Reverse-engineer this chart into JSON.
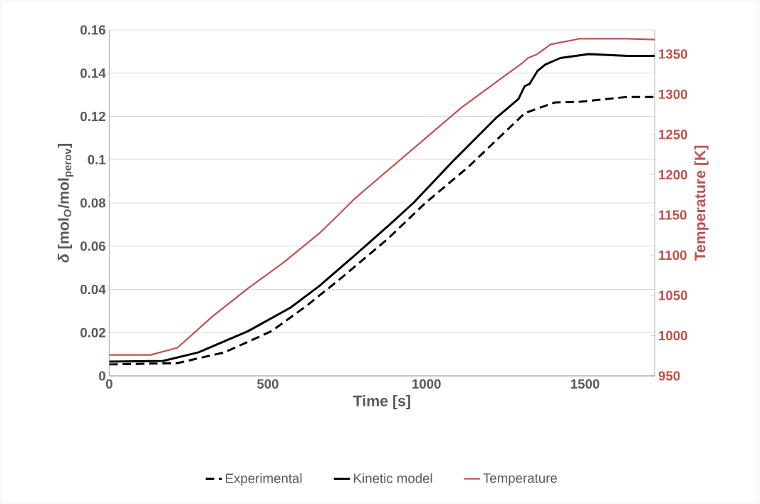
{
  "chart_data": {
    "type": "line",
    "xlabel": "Time [s]",
    "ylabel": "*δ* [mol$_{O}$/mol$_{perov}$]",
    "y2label": "Temperature [K]",
    "xlim": [
      0,
      1720
    ],
    "xticks": [
      0,
      500,
      1000,
      1500
    ],
    "ylim": [
      0,
      0.16
    ],
    "yticks": [
      0,
      0.02,
      0.04,
      0.06,
      0.08,
      0.1,
      0.12,
      0.14,
      0.16
    ],
    "y2lim": [
      950,
      1380
    ],
    "y2ticks": [
      950,
      1000,
      1050,
      1100,
      1150,
      1200,
      1250,
      1300,
      1350
    ],
    "grid": "y",
    "legend": "bottom",
    "marker": "none",
    "series": [
      {
        "name": "Experimental",
        "color": "#000000",
        "line_style": "dashed",
        "x": [
          0,
          215,
          364,
          512,
          624,
          736,
          879,
          997,
          1131,
          1310,
          1404,
          1480,
          1632,
          1720
        ],
        "values": [
          0.0053,
          0.0059,
          0.0109,
          0.0207,
          0.0326,
          0.0458,
          0.0635,
          0.08,
          0.0965,
          0.1215,
          0.1264,
          0.1267,
          0.129,
          0.129
        ]
      },
      {
        "name": "Kinetic model",
        "color": "#000000",
        "line_style": "solid",
        "x": [
          0,
          170,
          282,
          438,
          572,
          662,
          773,
          885,
          959,
          1087,
          1221,
          1290,
          1310,
          1325,
          1350,
          1375,
          1422,
          1511,
          1634,
          1720
        ],
        "values": [
          0.0066,
          0.0069,
          0.0109,
          0.0207,
          0.0316,
          0.0415,
          0.0556,
          0.0701,
          0.08,
          0.0998,
          0.1195,
          0.128,
          0.134,
          0.135,
          0.141,
          0.144,
          0.147,
          0.1488,
          0.148,
          0.148
        ]
      },
      {
        "name": "Temperature",
        "color": "#c0504d",
        "line_style": "solid",
        "axis": "y2",
        "x": [
          0,
          130,
          215,
          326,
          438,
          550,
          662,
          722,
          773,
          1109,
          1254,
          1300,
          1320,
          1350,
          1391,
          1482,
          1634,
          1720
        ],
        "values": [
          976,
          976,
          985,
          1024,
          1059,
          1091,
          1127,
          1150,
          1170,
          1283,
          1325,
          1338,
          1345,
          1350,
          1362,
          1369,
          1369,
          1368
        ]
      }
    ]
  }
}
